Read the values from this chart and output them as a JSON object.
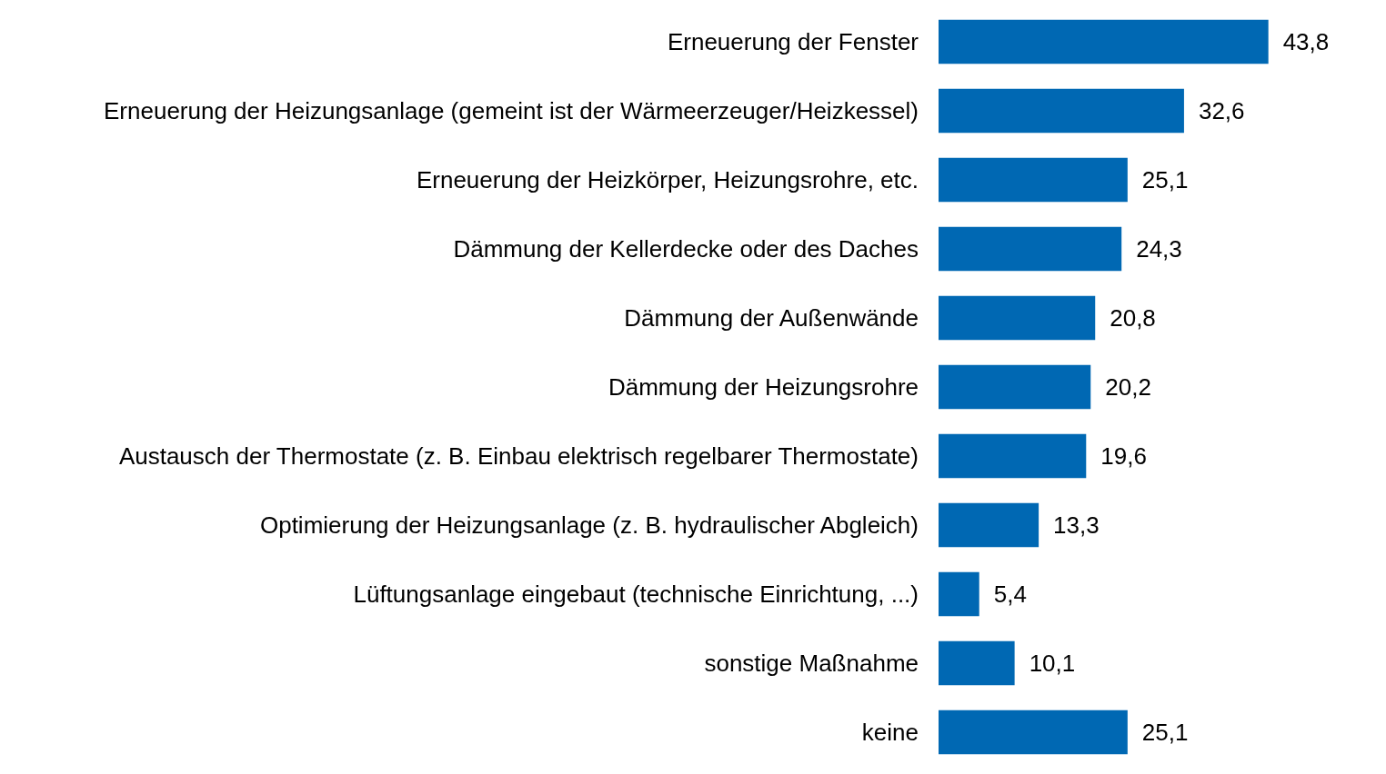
{
  "chart_data": {
    "type": "bar",
    "orientation": "horizontal",
    "categories": [
      "Erneuerung der Fenster",
      "Erneuerung der Heizungsanlage (gemeint ist der Wärmeerzeuger/Heizkessel)",
      "Erneuerung der Heizkörper, Heizungsrohre, etc.",
      "Dämmung der Kellerdecke oder des Daches",
      "Dämmung der Außenwände",
      "Dämmung der Heizungsrohre",
      "Austausch der Thermostate (z. B. Einbau elektrisch regelbarer Thermostate)",
      "Optimierung der Heizungsanlage (z. B. hydraulischer Abgleich)",
      "Lüftungsanlage eingebaut (technische Einrichtung, ...)",
      "sonstige Maßnahme",
      "keine"
    ],
    "values": [
      43.8,
      32.6,
      25.1,
      24.3,
      20.8,
      20.2,
      19.6,
      13.3,
      5.4,
      10.1,
      25.1
    ],
    "value_labels": [
      "43,8",
      "32,6",
      "25,1",
      "24,3",
      "20,8",
      "20,2",
      "19,6",
      "13,3",
      "5,4",
      "10,1",
      "25,1"
    ],
    "color": "#0068b3",
    "tick_labels": "y"
  }
}
